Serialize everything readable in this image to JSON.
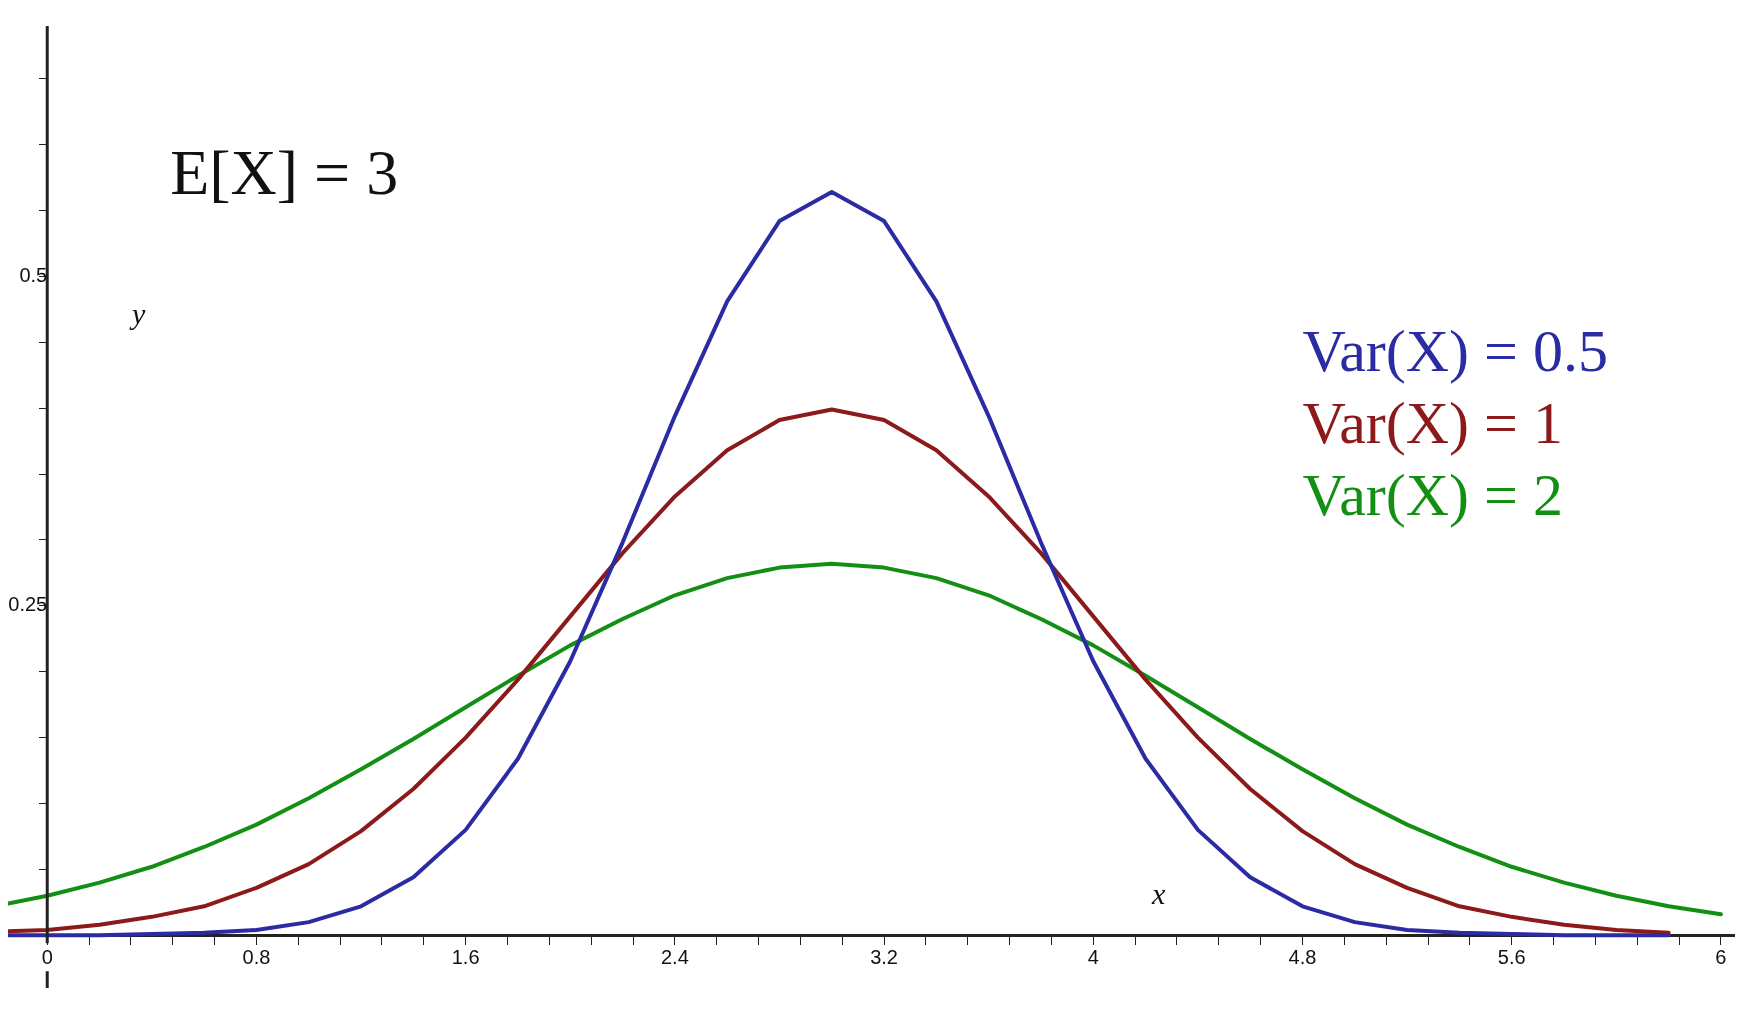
{
  "chart_data": {
    "type": "line",
    "xlabel": "x",
    "ylabel": "y",
    "annotations": [
      "E[X] = 3"
    ],
    "x": [
      -0.15,
      0,
      0.2,
      0.4,
      0.6,
      0.8,
      1,
      1.2,
      1.4,
      1.6,
      1.8,
      2,
      2.2,
      2.4,
      2.6,
      2.8,
      3,
      3.2,
      3.4,
      3.6,
      3.8,
      4,
      4.2,
      4.4,
      4.6,
      4.8,
      5,
      5.2,
      5.4,
      5.6,
      5.8,
      6,
      6.2,
      6.4
    ],
    "series": [
      {
        "name": "Var(X) = 0.5",
        "color": "#2b2ba3",
        "values": [
          0.0,
          0.0,
          0.0,
          0.001,
          0.002,
          0.004,
          0.01,
          0.022,
          0.044,
          0.08,
          0.134,
          0.208,
          0.298,
          0.394,
          0.481,
          0.542,
          0.564,
          0.542,
          0.481,
          0.394,
          0.298,
          0.208,
          0.134,
          0.08,
          0.044,
          0.022,
          0.01,
          0.004,
          0.002,
          0.001,
          0.0,
          0.0,
          0.0,
          null
        ]
      },
      {
        "name": "Var(X) = 1",
        "color": "#8c1a1a",
        "values": [
          0.003,
          0.004,
          0.008,
          0.014,
          0.022,
          0.036,
          0.054,
          0.079,
          0.111,
          0.15,
          0.194,
          0.242,
          0.29,
          0.333,
          0.368,
          0.391,
          0.399,
          0.391,
          0.368,
          0.333,
          0.29,
          0.242,
          0.194,
          0.15,
          0.111,
          0.079,
          0.054,
          0.036,
          0.022,
          0.014,
          0.008,
          0.004,
          0.002,
          null
        ]
      },
      {
        "name": "Var(X) = 2",
        "color": "#139013",
        "values": [
          0.024,
          0.03,
          0.04,
          0.052,
          0.067,
          0.084,
          0.104,
          0.126,
          0.149,
          0.173,
          0.197,
          0.22,
          0.24,
          0.258,
          0.271,
          0.279,
          0.282,
          0.279,
          0.271,
          0.258,
          0.24,
          0.22,
          0.197,
          0.173,
          0.149,
          0.126,
          0.104,
          0.084,
          0.067,
          0.052,
          0.04,
          0.03,
          0.022,
          0.016
        ]
      }
    ],
    "xlim": [
      -0.15,
      6.45
    ],
    "ylim": [
      -0.04,
      0.69
    ],
    "xticks": [
      0,
      {
        "value": 0.16,
        "label": null
      },
      {
        "value": 0.32,
        "label": null
      },
      {
        "value": 0.48,
        "label": null
      },
      {
        "value": 0.64,
        "label": null
      },
      0.8,
      {
        "value": 0.96,
        "label": null
      },
      {
        "value": 1.12,
        "label": null
      },
      {
        "value": 1.28,
        "label": null
      },
      {
        "value": 1.44,
        "label": null
      },
      1.6,
      {
        "value": 1.76,
        "label": null
      },
      {
        "value": 1.92,
        "label": null
      },
      {
        "value": 2.08,
        "label": null
      },
      {
        "value": 2.24,
        "label": null
      },
      2.4,
      {
        "value": 2.56,
        "label": null
      },
      {
        "value": 2.72,
        "label": null
      },
      {
        "value": 2.88,
        "label": null
      },
      {
        "value": 3.04,
        "label": null
      },
      3.2,
      {
        "value": 3.36,
        "label": null
      },
      {
        "value": 3.52,
        "label": null
      },
      {
        "value": 3.68,
        "label": null
      },
      {
        "value": 3.84,
        "label": null
      },
      4,
      {
        "value": 4.16,
        "label": null
      },
      {
        "value": 4.32,
        "label": null
      },
      {
        "value": 4.48,
        "label": null
      },
      {
        "value": 4.64,
        "label": null
      },
      4.8,
      {
        "value": 4.96,
        "label": null
      },
      {
        "value": 5.12,
        "label": null
      },
      {
        "value": 5.28,
        "label": null
      },
      {
        "value": 5.44,
        "label": null
      },
      5.6,
      {
        "value": 5.76,
        "label": null
      },
      {
        "value": 5.92,
        "label": null
      },
      {
        "value": 6.08,
        "label": null
      },
      {
        "value": 6.24,
        "label": null
      },
      {
        "value": 6.4,
        "label": "6"
      }
    ],
    "yticks": [
      {
        "value": 0.05,
        "label": null
      },
      {
        "value": 0.1,
        "label": null
      },
      {
        "value": 0.15,
        "label": null
      },
      {
        "value": 0.2,
        "label": null
      },
      0.25,
      {
        "value": 0.3,
        "label": null
      },
      {
        "value": 0.35,
        "label": null
      },
      {
        "value": 0.4,
        "label": null
      },
      {
        "value": 0.45,
        "label": null
      },
      0.5,
      {
        "value": 0.55,
        "label": null
      },
      {
        "value": 0.6,
        "label": null
      },
      {
        "value": 0.65,
        "label": null
      }
    ],
    "grid": false,
    "legend": false,
    "marker": "none",
    "line_style": "solid"
  }
}
